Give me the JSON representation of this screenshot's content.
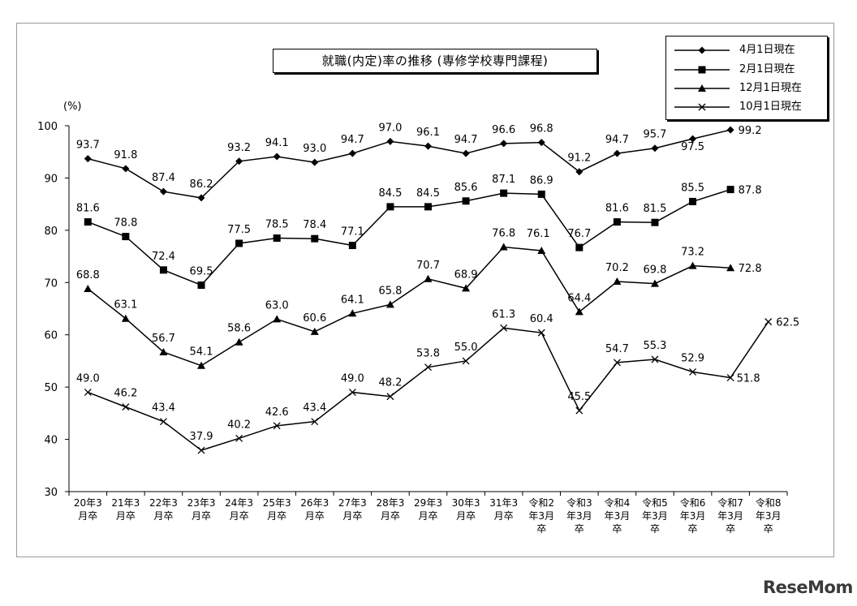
{
  "page": {
    "brand": "ReseMom"
  },
  "chart_data": {
    "type": "line",
    "title": "就職(内定)率の推移 (専修学校専門課程)",
    "ylabel": "(%)",
    "xlabel": "",
    "ylim": [
      30,
      100
    ],
    "yticks": [
      30,
      40,
      50,
      60,
      70,
      80,
      90,
      100
    ],
    "grid": false,
    "legend_position": "top-right",
    "categories": [
      [
        "20年3",
        "月卒"
      ],
      [
        "21年3",
        "月卒"
      ],
      [
        "22年3",
        "月卒"
      ],
      [
        "23年3",
        "月卒"
      ],
      [
        "24年3",
        "月卒"
      ],
      [
        "25年3",
        "月卒"
      ],
      [
        "26年3",
        "月卒"
      ],
      [
        "27年3",
        "月卒"
      ],
      [
        "28年3",
        "月卒"
      ],
      [
        "29年3",
        "月卒"
      ],
      [
        "30年3",
        "月卒"
      ],
      [
        "31年3",
        "月卒"
      ],
      [
        "令和2",
        "年3月",
        "卒"
      ],
      [
        "令和3",
        "年3月",
        "卒"
      ],
      [
        "令和4",
        "年3月",
        "卒"
      ],
      [
        "令和5",
        "年3月",
        "卒"
      ],
      [
        "令和6",
        "年3月",
        "卒"
      ],
      [
        "令和7",
        "年3月",
        "卒"
      ],
      [
        "令和8",
        "年3月",
        "卒"
      ]
    ],
    "series": [
      {
        "name": "4月1日現在",
        "marker": "diamond",
        "values": [
          93.7,
          91.8,
          87.4,
          86.2,
          93.2,
          94.1,
          93.0,
          94.7,
          97.0,
          96.1,
          94.7,
          96.6,
          96.8,
          91.2,
          94.7,
          95.7,
          97.5,
          99.2,
          null
        ],
        "labels": [
          "93.7",
          "91.8",
          "87.4",
          "86.2",
          "93.2",
          "94.1",
          "93.0",
          "94.7",
          "97.0",
          "96.1",
          "94.7",
          "96.6",
          "96.8",
          "91.2",
          "94.7",
          "95.7",
          "97.5",
          "99.2",
          null
        ]
      },
      {
        "name": "2月1日現在",
        "marker": "square",
        "values": [
          81.6,
          78.8,
          72.4,
          69.5,
          77.5,
          78.5,
          78.4,
          77.1,
          84.5,
          84.5,
          85.6,
          87.1,
          86.9,
          76.7,
          81.6,
          81.5,
          85.5,
          87.8,
          null
        ],
        "labels": [
          "81.6",
          "78.8",
          "72.4",
          "69.5",
          "77.5",
          "78.5",
          "78.4",
          "77.1",
          "84.5",
          "84.5",
          "85.6",
          "87.1",
          "86.9",
          "76.7",
          "81.6",
          "81.5",
          "85.5",
          "87.8",
          null
        ]
      },
      {
        "name": "12月1日現在",
        "marker": "triangle",
        "values": [
          68.8,
          63.1,
          56.7,
          54.1,
          58.6,
          63.0,
          60.6,
          64.1,
          65.8,
          70.7,
          68.9,
          76.8,
          76.1,
          64.4,
          70.2,
          69.8,
          73.2,
          72.8,
          null
        ],
        "labels": [
          "68.8",
          "63.1",
          "56.7",
          "54.1",
          "58.6",
          "63.0",
          "60.6",
          "64.1",
          "65.8",
          "70.7",
          "68.9",
          "76.8",
          "76.1",
          "64.4",
          "70.2",
          "69.8",
          "73.2",
          "72.8",
          null
        ]
      },
      {
        "name": "10月1日現在",
        "marker": "cross",
        "values": [
          49.0,
          46.2,
          43.4,
          37.9,
          40.2,
          42.6,
          43.4,
          49.0,
          48.2,
          53.8,
          55.0,
          61.3,
          60.4,
          45.5,
          54.7,
          55.3,
          52.9,
          51.8,
          62.5
        ],
        "labels": [
          "49.0",
          "46.2",
          "43.4",
          "37.9",
          "40.2",
          "42.6",
          "43.4",
          "49.0",
          "48.2",
          "53.8",
          "55.0",
          "61.3",
          "60.4",
          "45.5",
          "54.7",
          "55.3",
          "52.9",
          "51.8",
          "62.5"
        ]
      }
    ]
  }
}
